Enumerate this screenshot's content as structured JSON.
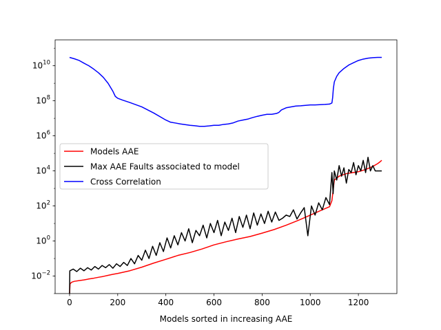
{
  "chart_data": {
    "type": "line",
    "title": "",
    "xlabel": "Models sorted in increasing AAE",
    "ylabel": "",
    "xlim": [
      -60,
      1360
    ],
    "ylim": [
      0.001,
      300000000000
    ],
    "yscale": "log",
    "grid": false,
    "legend_position": "center-left",
    "x_ticks": [
      {
        "value": 0,
        "label": "0"
      },
      {
        "value": 200,
        "label": "200"
      },
      {
        "value": 400,
        "label": "400"
      },
      {
        "value": 600,
        "label": "600"
      },
      {
        "value": 800,
        "label": "800"
      },
      {
        "value": 1000,
        "label": "1000"
      },
      {
        "value": 1200,
        "label": "1200"
      }
    ],
    "y_ticks": [
      {
        "value": 0.01,
        "base": "10",
        "exp": "−2"
      },
      {
        "value": 1,
        "base": "10",
        "exp": "0"
      },
      {
        "value": 100,
        "base": "10",
        "exp": "2"
      },
      {
        "value": 10000,
        "base": "10",
        "exp": "4"
      },
      {
        "value": 1000000,
        "base": "10",
        "exp": "6"
      },
      {
        "value": 100000000,
        "base": "10",
        "exp": "8"
      },
      {
        "value": 10000000000,
        "base": "10",
        "exp": "10"
      }
    ],
    "series": [
      {
        "name": "Models AAE",
        "color": "#ff0000",
        "x": [
          0,
          2,
          5,
          10,
          20,
          40,
          60,
          80,
          100,
          120,
          140,
          160,
          180,
          200,
          250,
          300,
          350,
          400,
          450,
          500,
          550,
          600,
          650,
          700,
          750,
          800,
          850,
          900,
          950,
          1000,
          1050,
          1080,
          1090,
          1100,
          1120,
          1150,
          1200,
          1230,
          1260,
          1280,
          1290,
          1297
        ],
        "y": [
          0.001,
          0.0035,
          0.004,
          0.0045,
          0.005,
          0.0055,
          0.006,
          0.0068,
          0.0075,
          0.0085,
          0.0095,
          0.011,
          0.0125,
          0.014,
          0.02,
          0.032,
          0.055,
          0.09,
          0.15,
          0.22,
          0.35,
          0.6,
          0.9,
          1.3,
          1.8,
          2.8,
          4.5,
          8,
          15,
          30,
          60,
          90,
          200,
          3000,
          5000,
          7000,
          9000,
          12000,
          18000,
          26000,
          33000,
          40000
        ]
      },
      {
        "name": "Max AAE Faults associated to model",
        "color": "#000000",
        "x": [
          0,
          1,
          2,
          15,
          30,
          45,
          60,
          75,
          90,
          105,
          120,
          135,
          150,
          165,
          180,
          195,
          210,
          225,
          240,
          255,
          270,
          285,
          300,
          315,
          330,
          345,
          360,
          375,
          390,
          405,
          420,
          435,
          450,
          465,
          480,
          495,
          510,
          525,
          540,
          555,
          570,
          585,
          600,
          615,
          630,
          645,
          660,
          675,
          690,
          705,
          720,
          735,
          750,
          765,
          780,
          795,
          810,
          825,
          840,
          855,
          870,
          885,
          900,
          915,
          930,
          945,
          960,
          975,
          990,
          1005,
          1020,
          1035,
          1050,
          1065,
          1080,
          1090,
          1095,
          1100,
          1110,
          1120,
          1130,
          1140,
          1150,
          1160,
          1170,
          1180,
          1190,
          1200,
          1210,
          1220,
          1230,
          1240,
          1250,
          1260,
          1270,
          1280,
          1290,
          1297
        ],
        "y": [
          0.001,
          0.02,
          0.02,
          0.025,
          0.018,
          0.028,
          0.02,
          0.03,
          0.022,
          0.035,
          0.025,
          0.04,
          0.03,
          0.045,
          0.028,
          0.05,
          0.035,
          0.06,
          0.04,
          0.1,
          0.05,
          0.15,
          0.08,
          0.3,
          0.1,
          0.5,
          0.15,
          0.8,
          0.25,
          1.5,
          0.4,
          2,
          0.6,
          3,
          1,
          5,
          0.8,
          4,
          2,
          8,
          1.5,
          10,
          3,
          15,
          2,
          12,
          4,
          20,
          3,
          25,
          6,
          30,
          5,
          40,
          8,
          35,
          10,
          50,
          12,
          45,
          15,
          20,
          30,
          25,
          60,
          18,
          40,
          80,
          2,
          100,
          30,
          150,
          60,
          300,
          120,
          8000,
          500,
          10000,
          3000,
          20000,
          5000,
          15000,
          2000,
          12000,
          8000,
          30000,
          6000,
          20000,
          10000,
          40000,
          8000,
          60000,
          10000,
          20000,
          10000,
          10000,
          10000,
          10000
        ]
      },
      {
        "name": "Cross Correlation",
        "color": "#0000ff",
        "x": [
          0,
          20,
          40,
          60,
          80,
          100,
          120,
          140,
          160,
          180,
          190,
          200,
          220,
          250,
          300,
          350,
          400,
          420,
          440,
          460,
          480,
          500,
          520,
          540,
          560,
          580,
          600,
          620,
          640,
          660,
          680,
          700,
          720,
          740,
          760,
          780,
          800,
          820,
          840,
          860,
          870,
          880,
          900,
          920,
          940,
          960,
          980,
          1000,
          1020,
          1040,
          1060,
          1080,
          1090,
          1093,
          1096,
          1100,
          1110,
          1120,
          1140,
          1160,
          1180,
          1200,
          1220,
          1240,
          1260,
          1280,
          1297
        ],
        "y": [
          30000000000,
          25000000000,
          20000000000,
          14000000000,
          10000000000,
          6500000000,
          4000000000,
          2200000000,
          1000000000,
          350000000,
          180000000,
          140000000,
          110000000,
          80000000,
          45000000,
          20000000,
          8000000,
          6000000,
          5400000,
          4800000,
          4400000,
          4000000,
          3800000,
          3500000,
          3500000,
          3700000,
          4000000,
          4000000,
          4500000,
          4800000,
          5500000,
          7000000,
          8000000,
          9000000,
          11000000,
          13000000,
          15000000,
          17000000,
          17000000,
          19000000,
          22000000,
          30000000,
          40000000,
          45000000,
          50000000,
          52000000,
          55000000,
          58000000,
          58000000,
          60000000,
          62000000,
          65000000,
          75000000,
          150000000,
          500000000,
          1200000000,
          2500000000,
          4000000000,
          7000000000,
          11000000000,
          15000000000,
          20000000000,
          24000000000,
          27000000000,
          29000000000,
          30000000000,
          30000000000
        ]
      }
    ]
  }
}
